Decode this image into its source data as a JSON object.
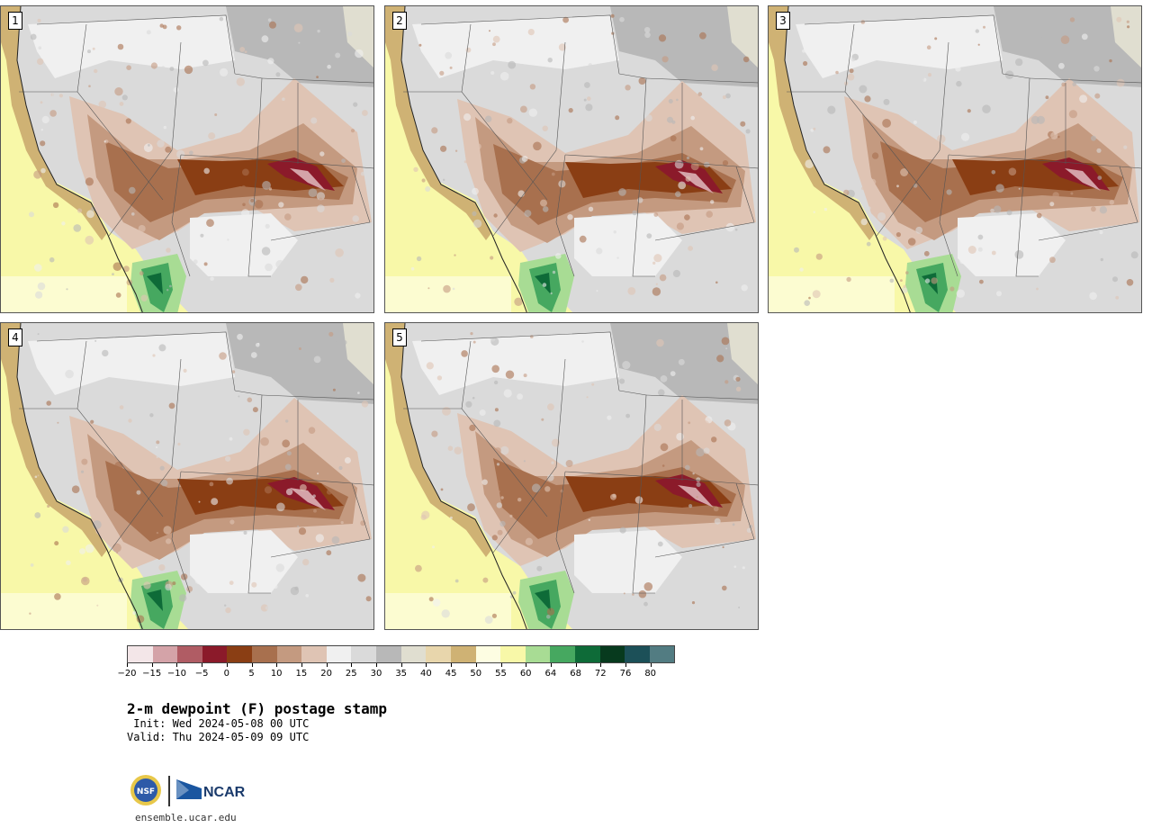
{
  "panels": [
    {
      "id": "p1",
      "label": "1"
    },
    {
      "id": "p2",
      "label": "2"
    },
    {
      "id": "p3",
      "label": "3"
    },
    {
      "id": "p4",
      "label": "4"
    },
    {
      "id": "p5",
      "label": "5"
    }
  ],
  "colorbar": {
    "ticks": [
      "−20",
      "−15",
      "−10",
      "−5",
      "0",
      "5",
      "10",
      "15",
      "20",
      "25",
      "30",
      "35",
      "40",
      "45",
      "50",
      "55",
      "60",
      "64",
      "68",
      "72",
      "76",
      "80"
    ],
    "colors": [
      "#f3e6e8",
      "#d4a3a8",
      "#b05c64",
      "#8b1a2a",
      "#8a3e14",
      "#a8704e",
      "#c49a80",
      "#dfc4b4",
      "#f0f0f0",
      "#dadada",
      "#b8b8b8",
      "#e0ded0",
      "#e8d6ac",
      "#cfb274",
      "#fdfde2",
      "#f8f8a8",
      "#a8dc94",
      "#46a860",
      "#0e6b38",
      "#073a1e",
      "#1c5058",
      "#527c82"
    ]
  },
  "title": "2-m dewpoint (F) postage stamp",
  "init": " Init: Wed 2024-05-08 00 UTC",
  "valid": "Valid: Thu 2024-05-09 09 UTC",
  "logo": {
    "nsf_text": "NSF",
    "ncar_text": "NCAR"
  },
  "website": "ensemble.ucar.edu"
}
